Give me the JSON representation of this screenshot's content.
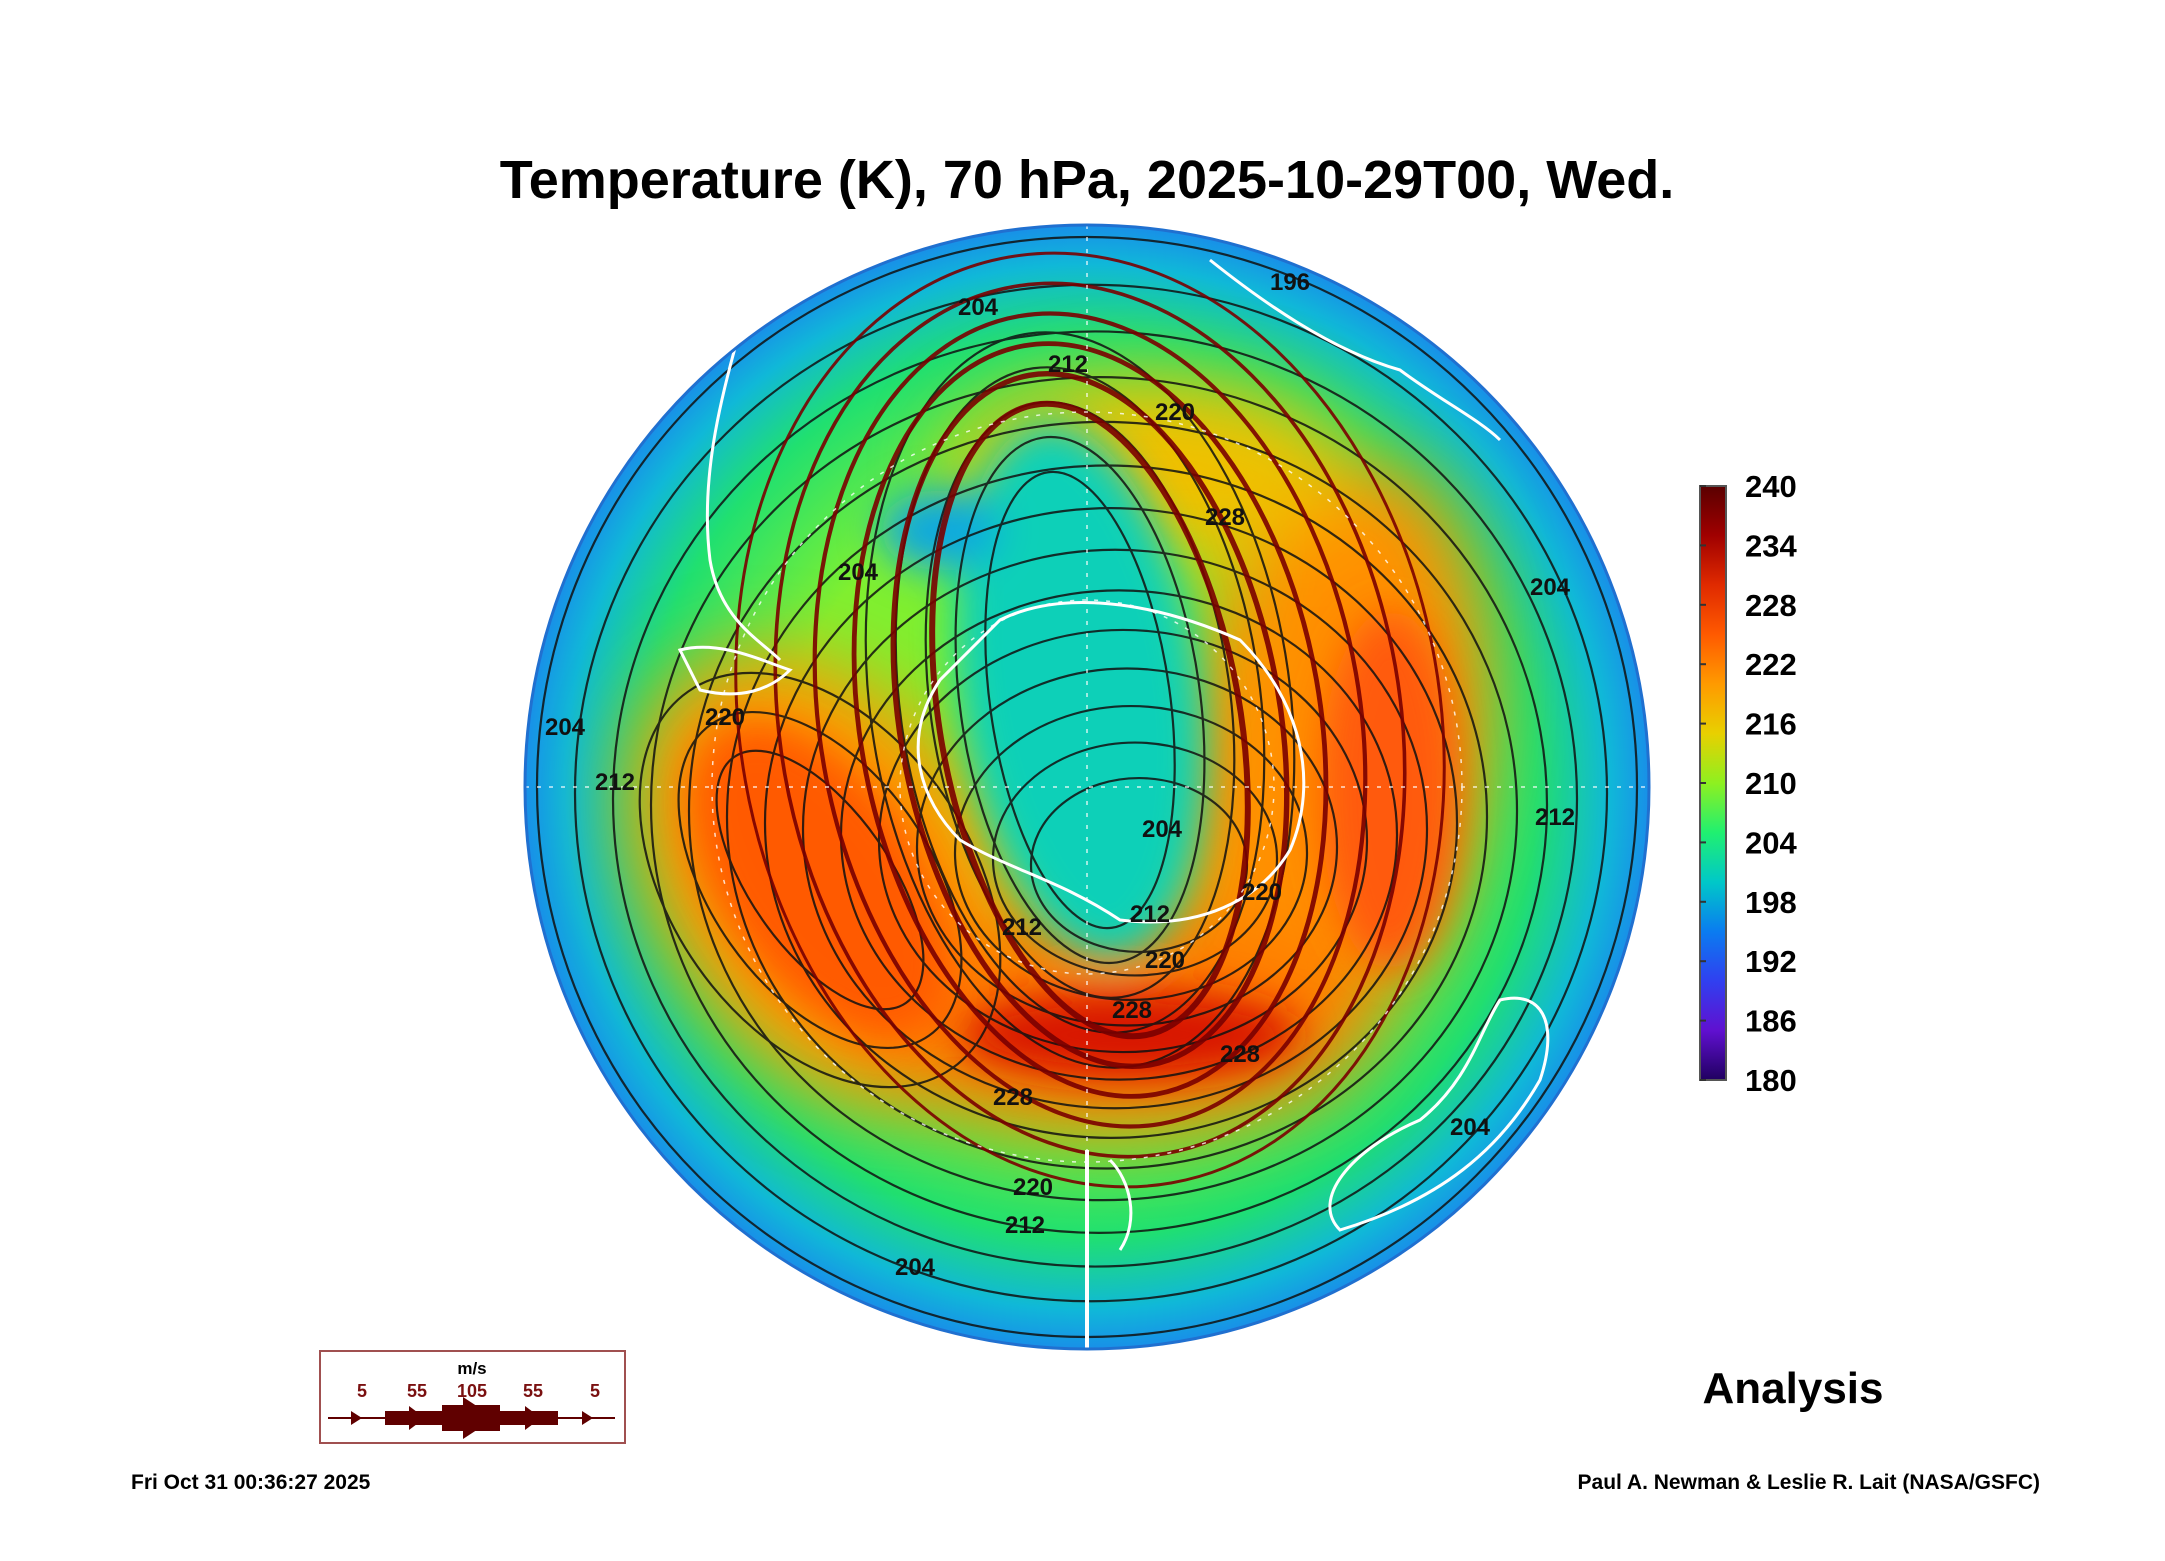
{
  "chart_data": {
    "type": "heatmap",
    "title": "Temperature (K), 70 hPa, 2025-10-29T00, Wed.",
    "projection": "south polar stereographic",
    "variable": "Temperature",
    "units": "K",
    "pressure_level_hPa": 70,
    "colorbar": {
      "range": [
        180,
        240
      ],
      "ticks": [
        "240",
        "234",
        "228",
        "222",
        "216",
        "210",
        "204",
        "198",
        "192",
        "186",
        "180"
      ],
      "colors": [
        "#5a0000",
        "#a00000",
        "#e02a00",
        "#ff5a00",
        "#ff9a00",
        "#e8d000",
        "#8ef020",
        "#20f070",
        "#00c8c8",
        "#0a7cf0",
        "#3040f0",
        "#6010d0",
        "#200060"
      ]
    },
    "contour_labels": [
      "204",
      "212",
      "196",
      "220",
      "228",
      "204",
      "204",
      "204",
      "212",
      "212",
      "220",
      "228",
      "204",
      "212",
      "220",
      "228",
      "228",
      "220",
      "212",
      "204",
      "204",
      "212",
      "220"
    ],
    "wind_legend": {
      "units": "m/s",
      "labels": [
        "5",
        "55",
        "105",
        "55",
        "5"
      ]
    },
    "field_regions": {
      "warm_max_K": 234,
      "cold_min_K": 192
    }
  },
  "analysis_label": "Analysis",
  "footer": {
    "timestamp": "Fri Oct 31 00:36:27 2025",
    "credit": "Paul A. Newman & Leslie R. Lait (NASA/GSFC)"
  }
}
